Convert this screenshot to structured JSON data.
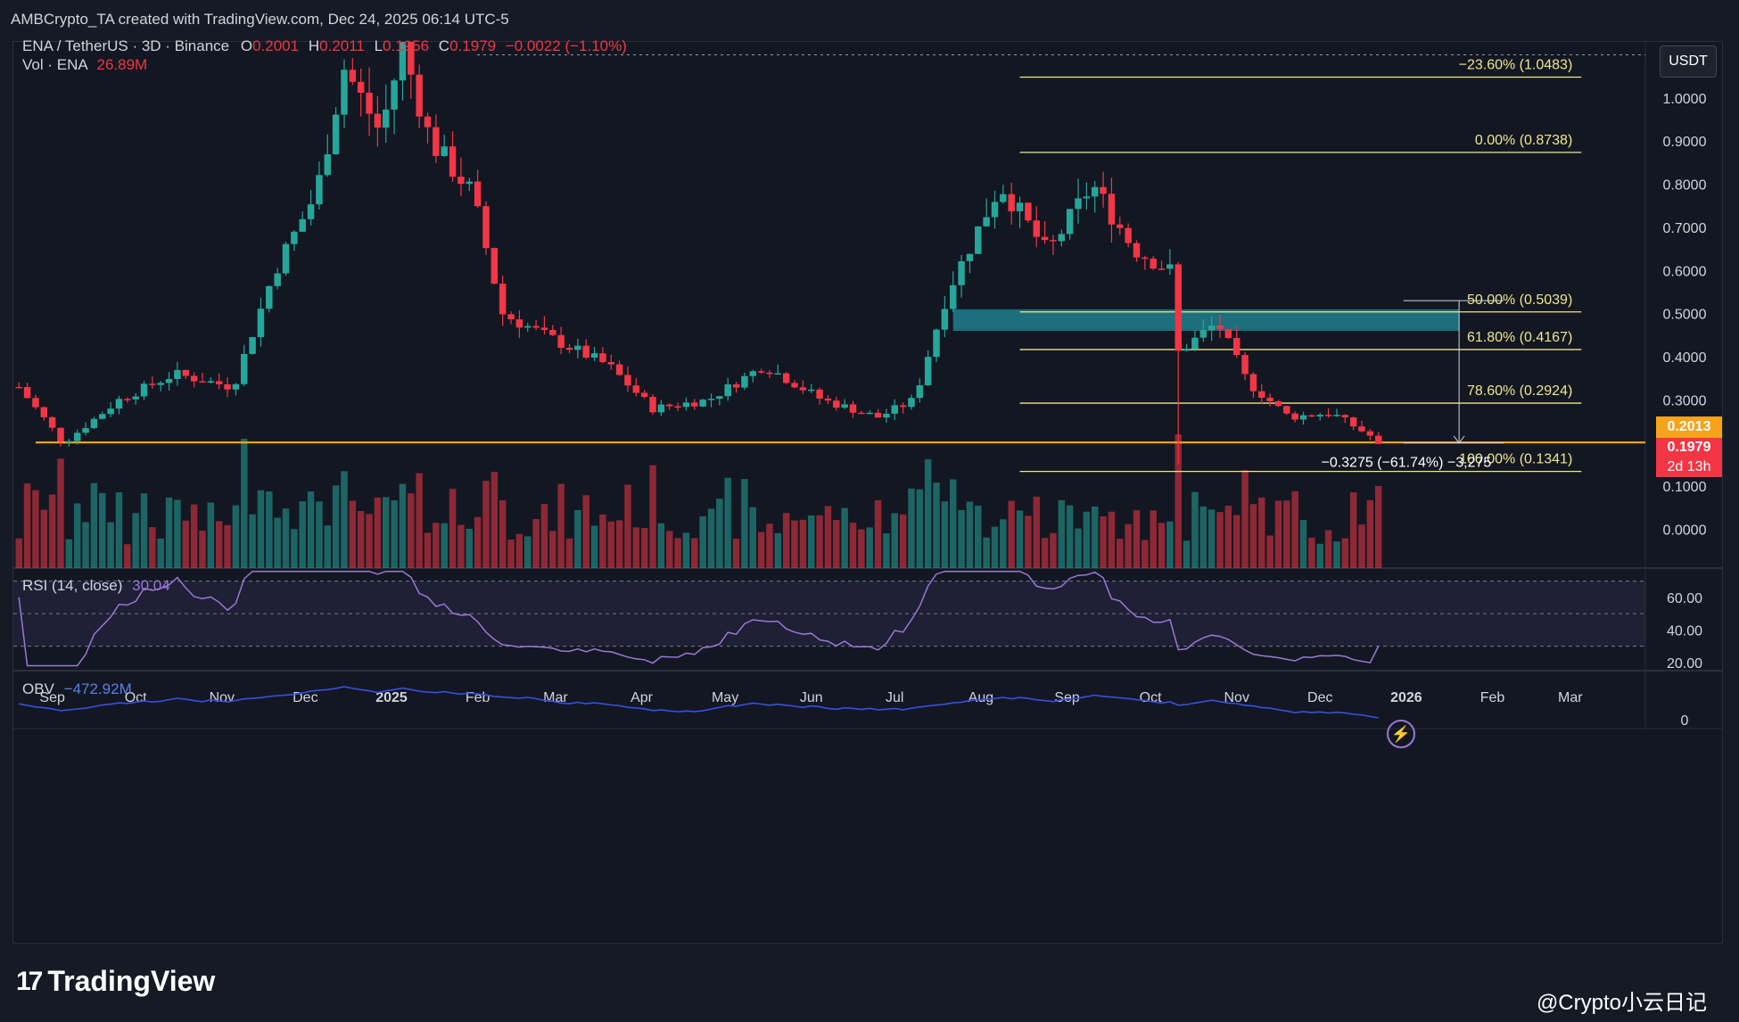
{
  "header_text": "AMBCrypto_TA created with TradingView.com, Dec 24, 2025 06:14 UTC-5",
  "legend": {
    "symbol": "ENA / TetherUS · 3D · Binance",
    "o_label": "O",
    "o_value": "0.2001",
    "h_label": "H",
    "h_value": "0.2011",
    "l_label": "L",
    "l_value": "0.1956",
    "c_label": "C",
    "c_value": "0.1979",
    "change": "−0.0022 (−1.10%)",
    "vol_label": "Vol · ENA",
    "vol_value": "26.89M",
    "rsi_label": "RSI (14, close)",
    "rsi_value": "30.04",
    "obv_label": "OBV",
    "obv_value": "−472.92M"
  },
  "currency_button": "USDT",
  "price_tags": {
    "level": "0.2013",
    "last": "0.1979",
    "countdown": "2d 13h"
  },
  "measure_label": "−0.3275 (−61.74%) −3,275",
  "footer_logo": "TradingView",
  "watermark": "@Crypto小云日记",
  "colors": {
    "up": "#26a69a",
    "down": "#f23645",
    "fib": "#f0e68c",
    "support": "#f7a21b",
    "zone": "#1f7f8c",
    "rsi": "#9a78d6",
    "obv": "#3451e0"
  },
  "chart_data": {
    "type": "candlestick",
    "x_axis_labels": [
      "Sep",
      "Oct",
      "Nov",
      "Dec",
      "2025",
      "Feb",
      "Mar",
      "Apr",
      "May",
      "Jun",
      "Jul",
      "Aug",
      "Sep",
      "Oct",
      "Nov",
      "Dec",
      "2026",
      "Feb",
      "Mar"
    ],
    "x_axis_dates": [
      "2024-09-01",
      "2024-10-01",
      "2024-11-01",
      "2024-12-01",
      "2025-01-01",
      "2025-02-01",
      "2025-03-01",
      "2025-04-01",
      "2025-05-01",
      "2025-06-01",
      "2025-07-01",
      "2025-08-01",
      "2025-09-01",
      "2025-10-01",
      "2025-11-01",
      "2025-12-01",
      "2026-01-01",
      "2026-02-01",
      "2026-03-01"
    ],
    "y_axis_ticks": [
      "1.0000",
      "0.9000",
      "0.8000",
      "0.7000",
      "0.6000",
      "0.5000",
      "0.4000",
      "0.3000",
      "0.1000",
      "0.0000"
    ],
    "y_range": [
      -0.09,
      1.13
    ],
    "price_anchors": [
      {
        "date": "2024-08-20",
        "price": 0.33
      },
      {
        "date": "2024-09-05",
        "price": 0.2
      },
      {
        "date": "2024-09-25",
        "price": 0.3
      },
      {
        "date": "2024-10-15",
        "price": 0.36
      },
      {
        "date": "2024-11-05",
        "price": 0.33
      },
      {
        "date": "2024-11-20",
        "price": 0.6
      },
      {
        "date": "2024-12-05",
        "price": 0.78
      },
      {
        "date": "2024-12-15",
        "price": 1.07
      },
      {
        "date": "2024-12-28",
        "price": 0.92
      },
      {
        "date": "2025-01-05",
        "price": 1.12
      },
      {
        "date": "2025-01-15",
        "price": 0.9
      },
      {
        "date": "2025-01-30",
        "price": 0.78
      },
      {
        "date": "2025-02-10",
        "price": 0.5
      },
      {
        "date": "2025-02-25",
        "price": 0.45
      },
      {
        "date": "2025-03-20",
        "price": 0.38
      },
      {
        "date": "2025-04-05",
        "price": 0.28
      },
      {
        "date": "2025-04-25",
        "price": 0.3
      },
      {
        "date": "2025-05-15",
        "price": 0.38
      },
      {
        "date": "2025-06-05",
        "price": 0.3
      },
      {
        "date": "2025-06-25",
        "price": 0.26
      },
      {
        "date": "2025-07-08",
        "price": 0.3
      },
      {
        "date": "2025-07-20",
        "price": 0.55
      },
      {
        "date": "2025-08-08",
        "price": 0.8
      },
      {
        "date": "2025-08-25",
        "price": 0.64
      },
      {
        "date": "2025-09-10",
        "price": 0.8
      },
      {
        "date": "2025-09-25",
        "price": 0.65
      },
      {
        "date": "2025-10-08",
        "price": 0.6
      },
      {
        "date": "2025-10-11",
        "price": 0.41
      },
      {
        "date": "2025-10-25",
        "price": 0.48
      },
      {
        "date": "2025-11-05",
        "price": 0.34
      },
      {
        "date": "2025-11-20",
        "price": 0.26
      },
      {
        "date": "2025-12-05",
        "price": 0.27
      },
      {
        "date": "2025-12-24",
        "price": 0.1979
      }
    ],
    "levels": [
      {
        "label": "−23.60% (1.0483)",
        "value": 1.0483
      },
      {
        "label": "0.00% (0.8738)",
        "value": 0.8738
      },
      {
        "label": "50.00% (0.5039)",
        "value": 0.5039
      },
      {
        "label": "61.80% (0.4167)",
        "value": 0.4167
      },
      {
        "label": "78.60% (0.2924)",
        "value": 0.2924
      },
      {
        "label": "100.00% (0.1341)",
        "value": 0.1341
      }
    ],
    "support_level": 0.2013,
    "zone": [
      0.46,
      0.51
    ],
    "rsi_ticks": [
      "60.00",
      "40.00",
      "20.00"
    ],
    "rsi_band": [
      30,
      70
    ],
    "rsi_last": 30.04,
    "obv_ticks": [
      "0"
    ],
    "obv_last": -472.92
  }
}
